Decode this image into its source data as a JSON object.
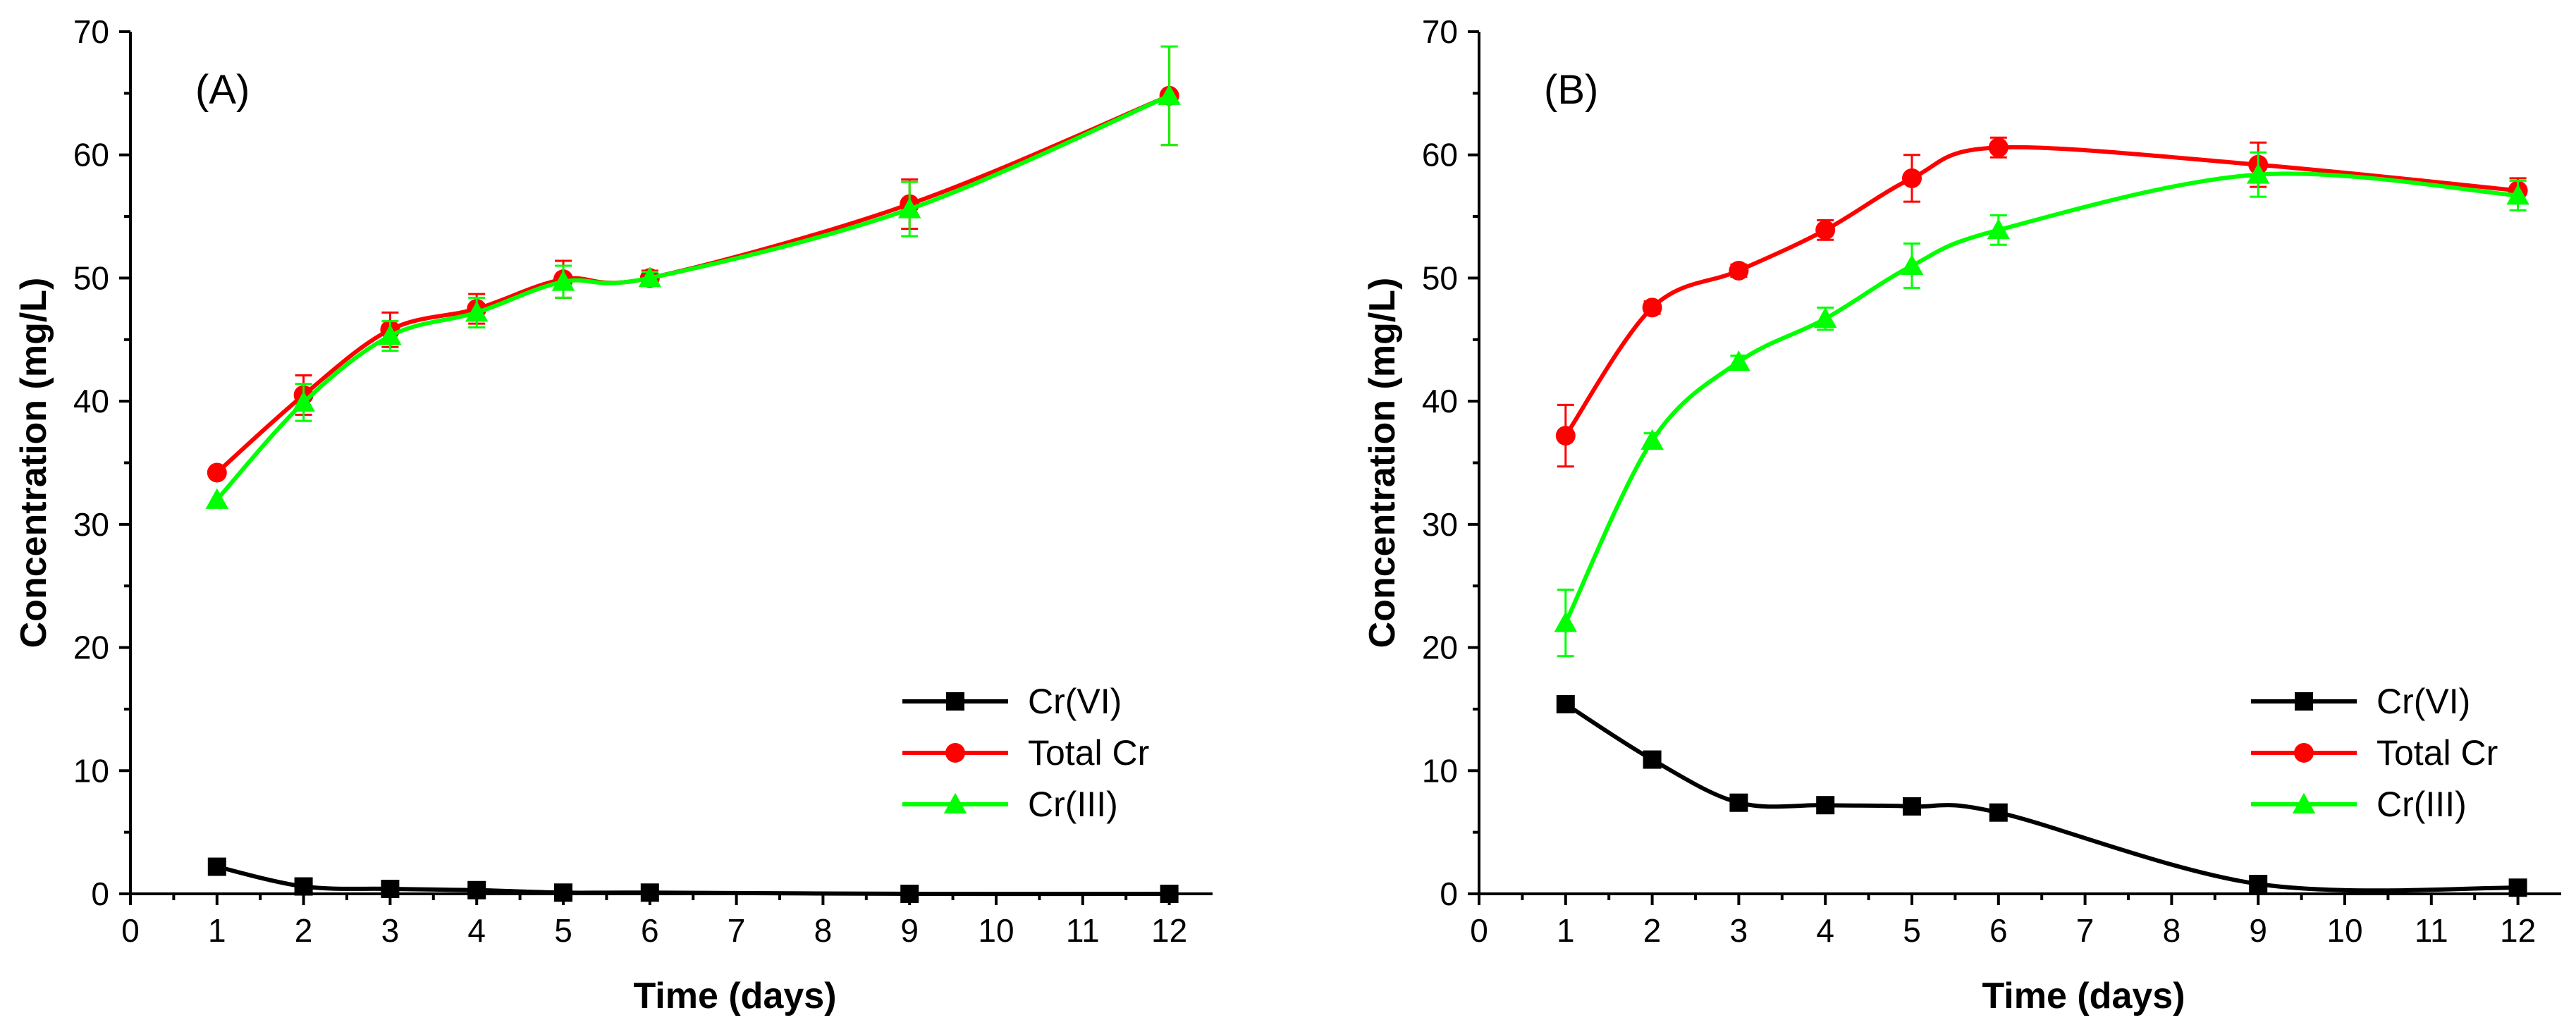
{
  "chart_data": [
    {
      "type": "line",
      "panel_label": "(A)",
      "xlabel": "Time (days)",
      "ylabel": "Concentration (mg/L)",
      "xlim": [
        0,
        12.5
      ],
      "ylim": [
        0,
        70
      ],
      "x_ticks": [
        "0",
        "1",
        "2",
        "3",
        "4",
        "5",
        "6",
        "7",
        "8",
        "9",
        "10",
        "11",
        "12"
      ],
      "y_ticks": [
        "0",
        "10",
        "20",
        "30",
        "40",
        "50",
        "60",
        "70"
      ],
      "legend_position": "bottom-right",
      "series": [
        {
          "name": "Cr(VI)",
          "color": "#000000",
          "marker": "square",
          "x": [
            1,
            2,
            3,
            4,
            5,
            6,
            9,
            12
          ],
          "values": [
            2.2,
            0.6,
            0.4,
            0.3,
            0.1,
            0.1,
            0.0,
            0.0
          ],
          "errors": [
            0,
            0,
            0,
            0,
            0,
            0,
            0,
            0
          ]
        },
        {
          "name": "Total Cr",
          "color": "#ff0000",
          "marker": "circle",
          "x": [
            1,
            2,
            3,
            4,
            5,
            6,
            9,
            12
          ],
          "values": [
            34.2,
            40.5,
            45.8,
            47.5,
            49.9,
            50.0,
            56.0,
            64.8
          ],
          "errors": [
            0,
            1.6,
            1.4,
            1.2,
            1.5,
            0.6,
            2.0,
            4.0
          ]
        },
        {
          "name": "Cr(III)",
          "color": "#00ff00",
          "marker": "triangle",
          "x": [
            1,
            2,
            3,
            4,
            5,
            6,
            9,
            12
          ],
          "values": [
            32.0,
            39.9,
            45.3,
            47.2,
            49.7,
            50.0,
            55.6,
            64.8
          ],
          "errors": [
            0,
            1.5,
            1.2,
            1.2,
            1.3,
            0.5,
            2.2,
            4.0
          ]
        }
      ]
    },
    {
      "type": "line",
      "panel_label": "(B)",
      "xlabel": "Time (days)",
      "ylabel": "Concentration (mg/L)",
      "xlim": [
        0,
        12.5
      ],
      "ylim": [
        0,
        70
      ],
      "x_ticks": [
        "0",
        "1",
        "2",
        "3",
        "4",
        "5",
        "6",
        "7",
        "8",
        "9",
        "10",
        "11",
        "12"
      ],
      "y_ticks": [
        "0",
        "10",
        "20",
        "30",
        "40",
        "50",
        "60",
        "70"
      ],
      "legend_position": "bottom-right",
      "series": [
        {
          "name": "Cr(VI)",
          "color": "#000000",
          "marker": "square",
          "x": [
            1,
            2,
            3,
            4,
            5,
            6,
            9,
            12
          ],
          "values": [
            15.4,
            10.9,
            7.4,
            7.2,
            7.1,
            6.6,
            0.8,
            0.5
          ],
          "errors": [
            0,
            0,
            0,
            0,
            0,
            0,
            0.4,
            0
          ]
        },
        {
          "name": "Total Cr",
          "color": "#ff0000",
          "marker": "circle",
          "x": [
            1,
            2,
            3,
            4,
            5,
            6,
            9,
            12
          ],
          "values": [
            37.2,
            47.6,
            50.6,
            53.9,
            58.1,
            60.6,
            59.2,
            57.1
          ],
          "errors": [
            2.5,
            0.5,
            0.5,
            0.8,
            1.9,
            0.8,
            1.8,
            1.0
          ]
        },
        {
          "name": "Cr(III)",
          "color": "#00ff00",
          "marker": "triangle",
          "x": [
            1,
            2,
            3,
            4,
            5,
            6,
            9,
            12
          ],
          "values": [
            22.0,
            36.8,
            43.2,
            46.7,
            51.0,
            53.9,
            58.4,
            56.7
          ],
          "errors": [
            2.7,
            0.6,
            0.5,
            0.9,
            1.8,
            1.2,
            1.8,
            1.2
          ]
        }
      ]
    }
  ]
}
